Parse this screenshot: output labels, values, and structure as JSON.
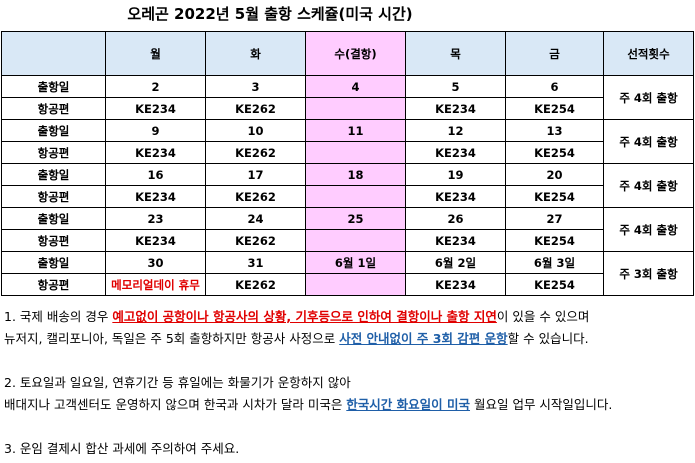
{
  "title": "오레곤 2022년 5월 출항 스케쥴(미국 시간)",
  "header": {
    "blank": "",
    "days": [
      "월",
      "화",
      "수(결항)",
      "목",
      "금"
    ],
    "freq": "선적횟수"
  },
  "labels": {
    "departure": "출항일",
    "flight": "항공편"
  },
  "weeks": [
    {
      "dates": [
        "2",
        "3",
        "4",
        "5",
        "6"
      ],
      "flights": [
        "KE234",
        "KE262",
        "",
        "KE234",
        "KE254"
      ],
      "freq": "주 4회 출항"
    },
    {
      "dates": [
        "9",
        "10",
        "11",
        "12",
        "13"
      ],
      "flights": [
        "KE234",
        "KE262",
        "",
        "KE234",
        "KE254"
      ],
      "freq": "주 4회 출항"
    },
    {
      "dates": [
        "16",
        "17",
        "18",
        "19",
        "20"
      ],
      "flights": [
        "KE234",
        "KE262",
        "",
        "KE234",
        "KE254"
      ],
      "freq": "주 4회 출항"
    },
    {
      "dates": [
        "23",
        "24",
        "25",
        "26",
        "27"
      ],
      "flights": [
        "KE234",
        "KE262",
        "",
        "KE234",
        "KE254"
      ],
      "freq": "주 4회 출항"
    },
    {
      "dates": [
        "30",
        "31",
        "6월 1일",
        "6월 2일",
        "6월 3일"
      ],
      "flights": [
        "메모리얼데이 휴무",
        "KE262",
        "",
        "KE234",
        "KE254"
      ],
      "freq": "주 3회 출항"
    }
  ],
  "notes": {
    "n1_a": "1. 국제 배송의 경우 ",
    "n1_b": "예고없이 공항이나 항공사의 상황, 기후등으로 인하여 결항이나 출항 지연",
    "n1_c": "이 있을 수 있으며",
    "n1_d": "뉴저지, 캘리포니아, 독일은 주 5회 출항하지만 항공사 사정으로 ",
    "n1_e": "사전 안내없이 주 3회 감편 운항",
    "n1_f": "할 수 있습니다.",
    "n2_a": "2. 토요일과 일요일, 연휴기간 등 휴일에는 화물기가 운항하지 않아",
    "n2_b": "배대지나 고객센터도 운영하지 않으며 한국과 시차가 달라 미국은 ",
    "n2_c": "한국시간 화요일이 미국",
    "n2_d": " 월요일 업무 시작일입니다.",
    "n3": "3. 운임 결제시 합산 과세에 주의하여 주세요."
  },
  "colors": {
    "header_bg": "#d9e8f6",
    "wed_bg": "#ffccff",
    "red": "#e00000",
    "blue": "#1f5fa8"
  }
}
